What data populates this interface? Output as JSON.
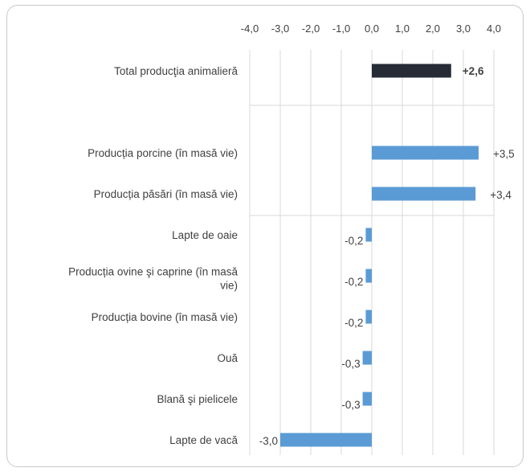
{
  "chart_data": {
    "type": "bar",
    "orientation": "horizontal",
    "title": "",
    "xlabel": "",
    "ylabel": "",
    "xlim": [
      -4.0,
      4.0
    ],
    "x_ticks": [
      "-4,0",
      "-3,0",
      "-2,0",
      "-1,0",
      "0,0",
      "1,0",
      "2,0",
      "3,0",
      "4,0"
    ],
    "x_tick_values": [
      -4,
      -3,
      -2,
      -1,
      0,
      1,
      2,
      3,
      4
    ],
    "x_axis_position": "top",
    "grid": true,
    "legend": "none",
    "colors": {
      "total": "#262b36",
      "components": "#5b9bd5",
      "grid": "#d9d9d9"
    },
    "categories": [
      {
        "label": [
          "Total producţia animalieră"
        ],
        "value": 2.6,
        "value_label": "+2,6",
        "highlight": true
      },
      {
        "label": [
          ""
        ],
        "value": null,
        "value_label": "",
        "highlight": false
      },
      {
        "label": [
          "Producția porcine (în masă vie)"
        ],
        "value": 3.5,
        "value_label": "+3,5",
        "highlight": false
      },
      {
        "label": [
          "Producția păsări (în masă vie)"
        ],
        "value": 3.4,
        "value_label": "+3,4",
        "highlight": false
      },
      {
        "label": [
          "Lapte de oaie"
        ],
        "value": -0.2,
        "value_label": "-0,2",
        "highlight": false
      },
      {
        "label": [
          "Producția ovine şi caprine (în masă",
          "vie)"
        ],
        "value": -0.2,
        "value_label": "-0,2",
        "highlight": false
      },
      {
        "label": [
          "Producția bovine (în masă vie)"
        ],
        "value": -0.2,
        "value_label": "-0,2",
        "highlight": false
      },
      {
        "label": [
          "Ouă"
        ],
        "value": -0.3,
        "value_label": "-0,3",
        "highlight": false
      },
      {
        "label": [
          "Blană şi pielicele"
        ],
        "value": -0.3,
        "value_label": "-0,3",
        "highlight": false
      },
      {
        "label": [
          "Lapte de vacă"
        ],
        "value": -3.0,
        "value_label": "-3,0",
        "highlight": false
      }
    ]
  }
}
